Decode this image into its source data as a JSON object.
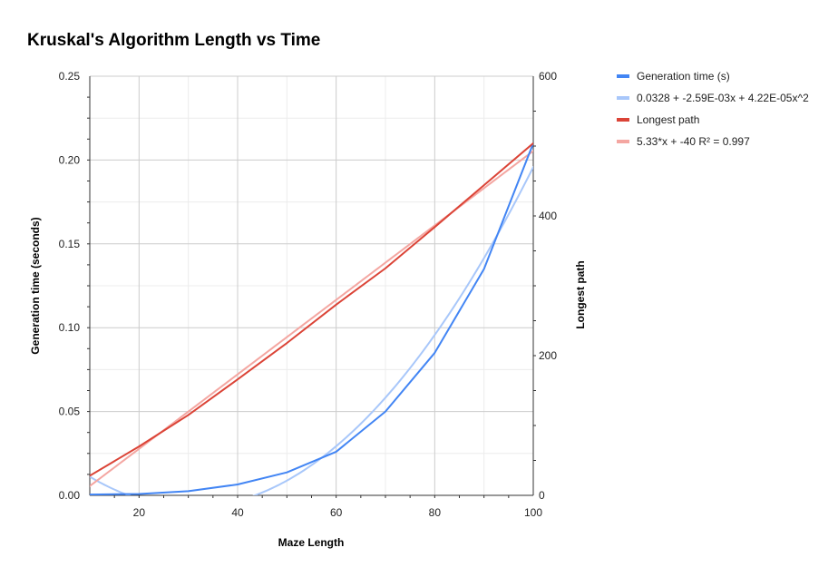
{
  "chart_data": {
    "type": "line",
    "title": "Kruskal's Algorithm Length vs Time",
    "xlabel": "Maze Length",
    "ylabel_left": "Generation time (seconds)",
    "ylabel_right": "Longest path",
    "xlim": [
      10,
      100
    ],
    "ylim_left": [
      0,
      0.25
    ],
    "ylim_right": [
      0,
      600
    ],
    "x_ticks": [
      20,
      40,
      60,
      80,
      100
    ],
    "y_left_ticks": [
      "0.00",
      "0.05",
      "0.10",
      "0.15",
      "0.20",
      "0.25"
    ],
    "y_right_ticks": [
      "0",
      "200",
      "400",
      "600"
    ],
    "grid": true,
    "legend_position": "right",
    "series": [
      {
        "name": "Generation time (s)",
        "axis": "left",
        "color": "#4285f4",
        "x": [
          10,
          20,
          30,
          40,
          50,
          60,
          70,
          80,
          90,
          100
        ],
        "values": [
          0.0005,
          0.0008,
          0.0025,
          0.0065,
          0.0137,
          0.026,
          0.05,
          0.085,
          0.135,
          0.21
        ]
      },
      {
        "name": "0.0328 + -2.59E-03x + 4.22E-05x^2",
        "axis": "left",
        "trendline": true,
        "color": "#a8c7fa",
        "coefficients": [
          0.0328,
          -0.00259,
          4.22e-05
        ]
      },
      {
        "name": "Longest path",
        "axis": "right",
        "color": "#db4437",
        "x": [
          10,
          20,
          30,
          40,
          50,
          60,
          70,
          80,
          90,
          100
        ],
        "values": [
          28,
          70,
          115,
          166,
          218,
          273,
          325,
          384,
          444,
          504
        ]
      },
      {
        "name": "5.33*x + -40 R² = 0.997",
        "axis": "right",
        "trendline": true,
        "color": "#f4a6a1",
        "coefficients": [
          -40,
          5.33
        ]
      }
    ]
  }
}
